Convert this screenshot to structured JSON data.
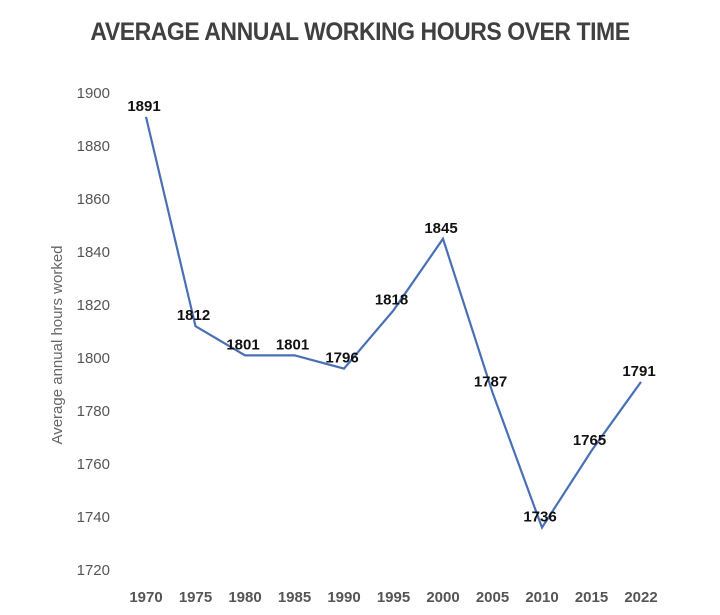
{
  "chart_data": {
    "type": "line",
    "title": "AVERAGE ANNUAL WORKING HOURS OVER TIME",
    "xlabel": "",
    "ylabel": "Average annual hours worked",
    "categories": [
      "1970",
      "1975",
      "1980",
      "1985",
      "1990",
      "1995",
      "2000",
      "2005",
      "2010",
      "2015",
      "2022"
    ],
    "values": [
      1891,
      1812,
      1801,
      1801,
      1796,
      1818,
      1845,
      1787,
      1736,
      1765,
      1791
    ],
    "ylim": [
      1720,
      1900
    ],
    "yticks": [
      1900,
      1880,
      1860,
      1840,
      1820,
      1800,
      1780,
      1760,
      1740,
      1720
    ],
    "grid": false,
    "legend": null,
    "line_color": "#4a6fb5",
    "data_labels": [
      "1891",
      "1812",
      "1801",
      "1801",
      "1796",
      "1818",
      "1845",
      "1787",
      "1736",
      "1765",
      "1791"
    ]
  }
}
